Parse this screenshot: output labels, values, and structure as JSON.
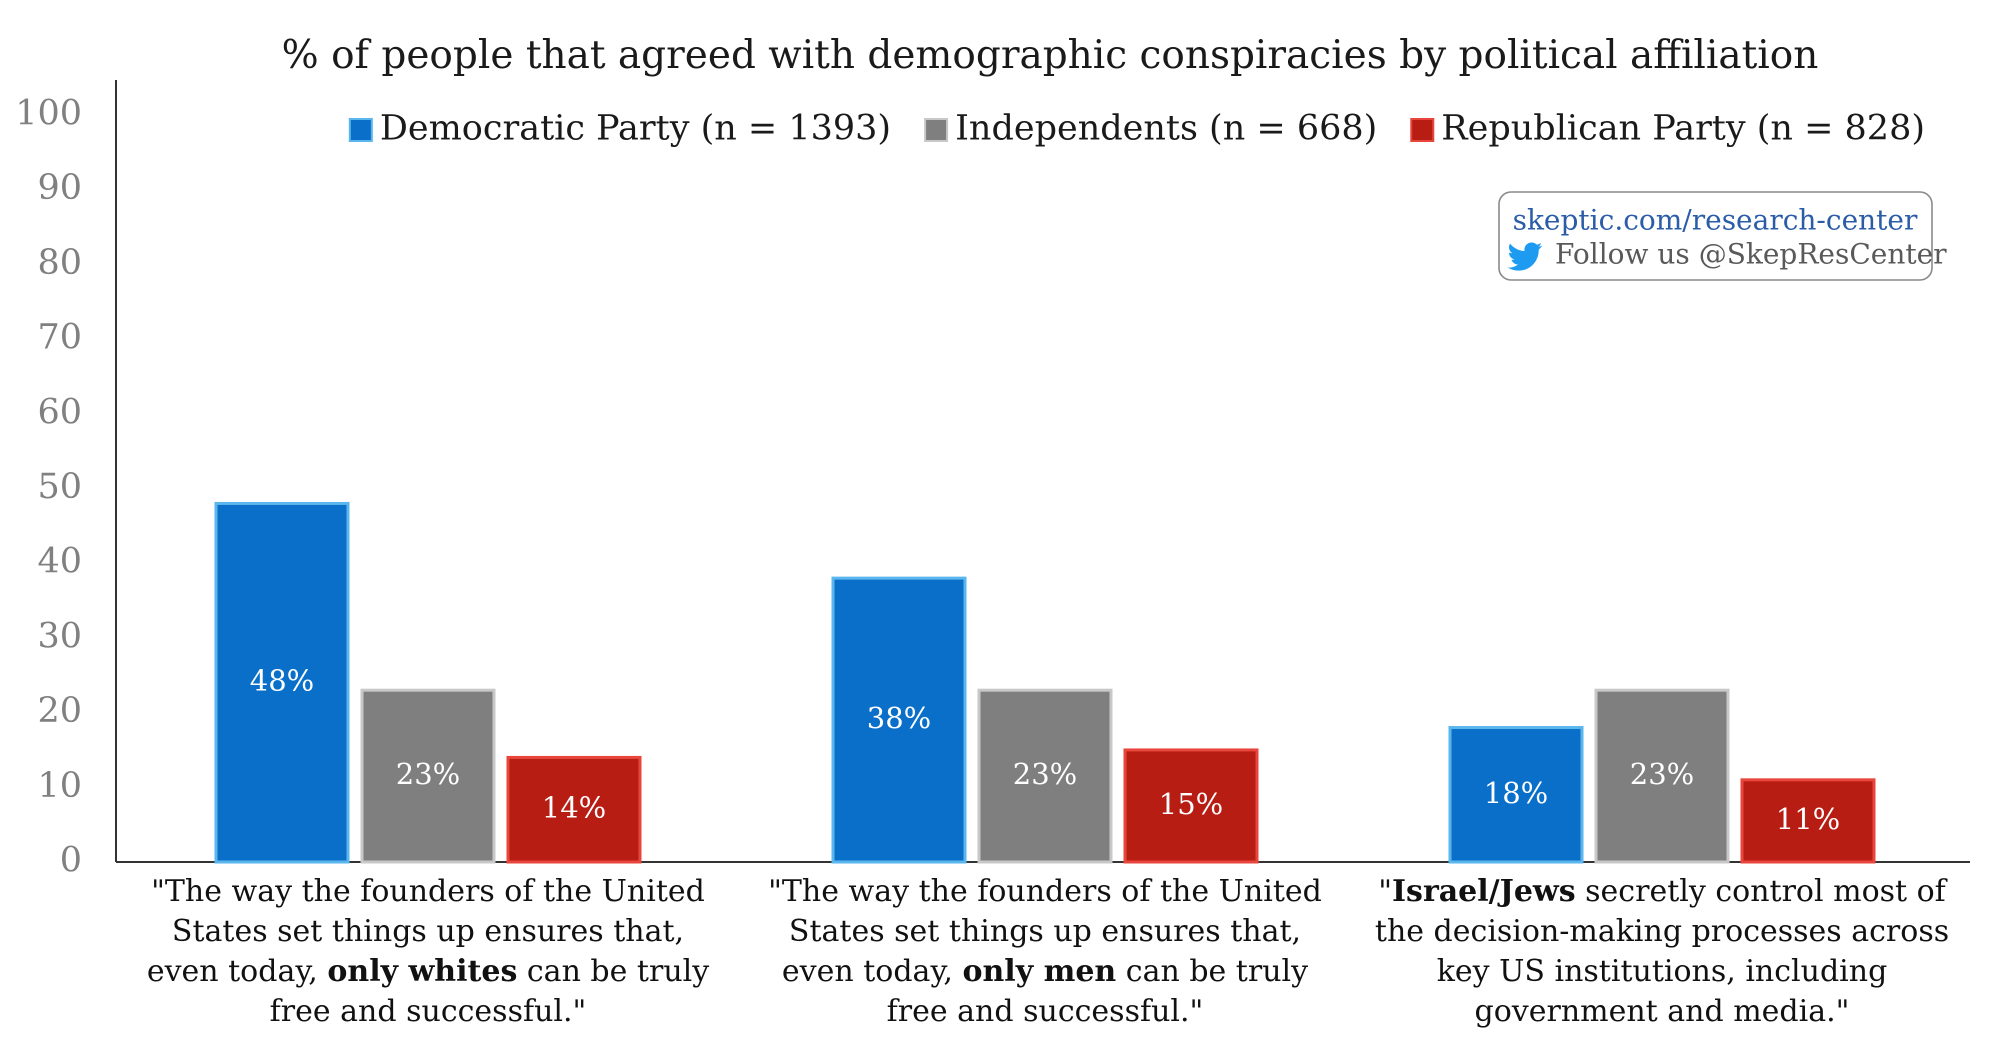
{
  "chart_data": {
    "type": "bar",
    "title": "%  of people that agreed with demographic conspiracies by political affiliation",
    "xlabel": "",
    "ylabel": "",
    "ylim": [
      0,
      100
    ],
    "yticks": [
      0,
      10,
      20,
      30,
      40,
      50,
      60,
      70,
      80,
      90,
      100
    ],
    "grid": false,
    "legend_position": "top-right",
    "categories": [
      {
        "segments": [
          {
            "text": "\"The way the founders of the United States set things up ensures that, even today, ",
            "bold": false
          },
          {
            "text": "only whites",
            "bold": true
          },
          {
            "text": " can be truly free and successful.\"",
            "bold": false
          }
        ]
      },
      {
        "segments": [
          {
            "text": "\"The way the founders of the United States set things up ensures that, even today, ",
            "bold": false
          },
          {
            "text": "only men",
            "bold": true
          },
          {
            "text": " can be truly free and successful.\"",
            "bold": false
          }
        ]
      },
      {
        "segments": [
          {
            "text": "\"",
            "bold": false
          },
          {
            "text": "Israel/Jews",
            "bold": true
          },
          {
            "text": " secretly control most of the decision-making processes across key US institutions, including government and media.\"",
            "bold": false
          }
        ]
      }
    ],
    "series": [
      {
        "name": "Democratic Party (n = 1393)",
        "color": "#0a6fc9",
        "edge_color": "#5ab6ec",
        "values": [
          48,
          38,
          18
        ],
        "labels": [
          "48%",
          "38%",
          "18%"
        ]
      },
      {
        "name": "Independents (n = 668)",
        "color": "#7f7f7f",
        "edge_color": "#c8c8c8",
        "values": [
          23,
          23,
          23
        ],
        "labels": [
          "23%",
          "23%",
          "23%"
        ]
      },
      {
        "name": "Republican Party (n = 828)",
        "color": "#b81d13",
        "edge_color": "#e8463c",
        "values": [
          14,
          15,
          11
        ],
        "labels": [
          "14%",
          "15%",
          "11%"
        ]
      }
    ]
  },
  "credit": {
    "link": "skeptic.com/research-center",
    "follow": "Follow us @SkepResCenter",
    "icon": "twitter-bird-icon",
    "border_color": "#8a8a8a",
    "icon_color": "#1d9bf0"
  }
}
